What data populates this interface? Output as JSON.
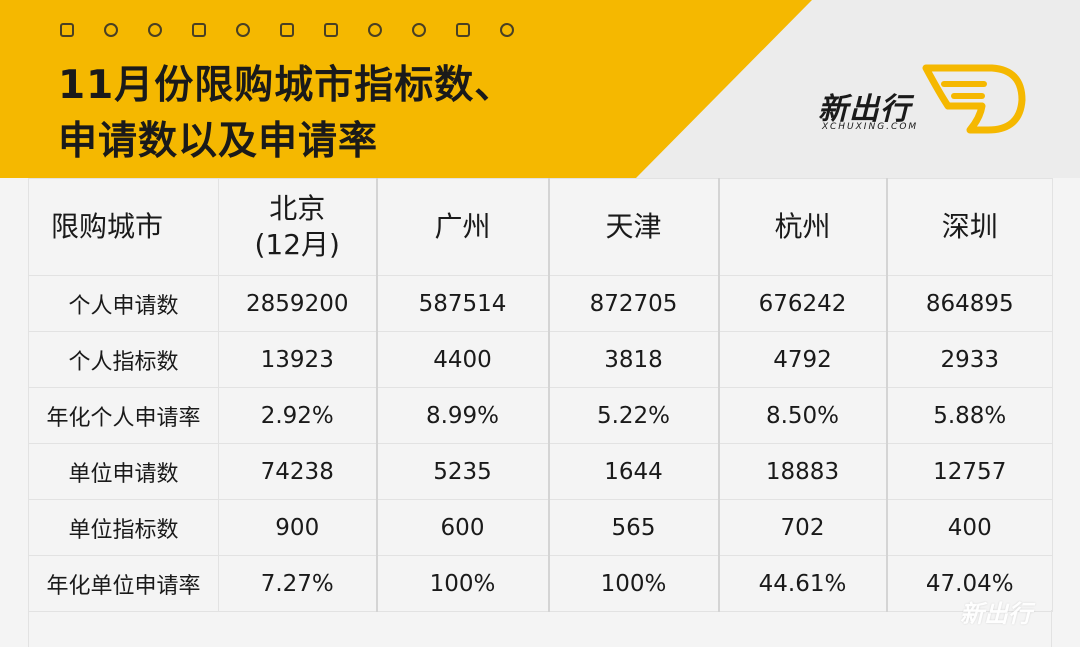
{
  "colors": {
    "accent": "#f5b800",
    "text": "#1a1a1a",
    "background": "#f4f4f4"
  },
  "header": {
    "title_line1": "11月份限购城市指标数、",
    "title_line2": "申请数以及申请率",
    "icons": [
      "car-front-icon",
      "wheel-icon",
      "gear-icon",
      "battery-icon",
      "turbo-icon",
      "wiper-icon",
      "car-front-icon",
      "wheel-icon",
      "gear-icon",
      "battery-icon",
      "turbo-icon",
      "wiper-icon"
    ]
  },
  "logo": {
    "name": "新出行",
    "domain": "XCHUXING.COM"
  },
  "table": {
    "corner": "限购城市",
    "cities": [
      {
        "line1": "北京",
        "line2": "(12月)"
      },
      {
        "line1": "广州",
        "line2": ""
      },
      {
        "line1": "天津",
        "line2": ""
      },
      {
        "line1": "杭州",
        "line2": ""
      },
      {
        "line1": "深圳",
        "line2": ""
      }
    ],
    "rows": [
      {
        "label": "个人申请数",
        "values": [
          "2859200",
          "587514",
          "872705",
          "676242",
          "864895"
        ]
      },
      {
        "label": "个人指标数",
        "values": [
          "13923",
          "4400",
          "3818",
          "4792",
          "2933"
        ]
      },
      {
        "label": "年化个人申请率",
        "values": [
          "2.92%",
          "8.99%",
          "5.22%",
          "8.50%",
          "5.88%"
        ]
      },
      {
        "label": "单位申请数",
        "values": [
          "74238",
          "5235",
          "1644",
          "18883",
          "12757"
        ]
      },
      {
        "label": "单位指标数",
        "values": [
          "900",
          "600",
          "565",
          "702",
          "400"
        ]
      },
      {
        "label": "年化单位申请率",
        "values": [
          "7.27%",
          "100%",
          "100%",
          "44.61%",
          "47.04%"
        ]
      }
    ]
  },
  "watermark": "新出行"
}
